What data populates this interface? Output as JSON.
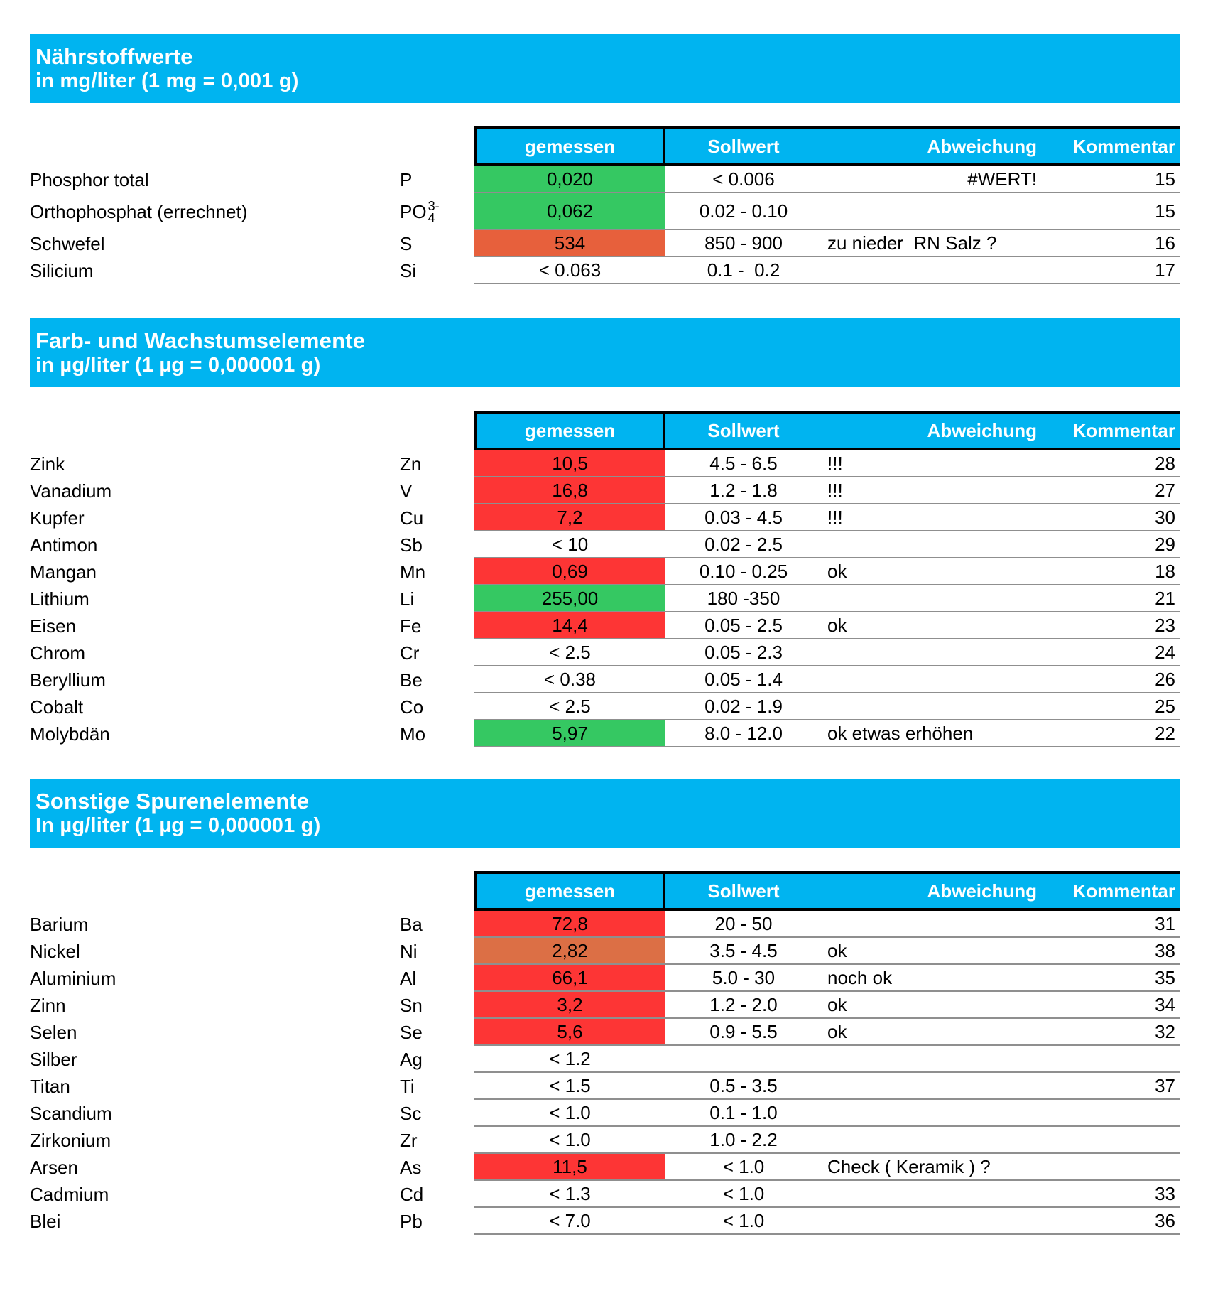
{
  "colors": {
    "header_blue": "#00b4f0",
    "green": "#35c862",
    "red": "#fd3535",
    "orange": "#e7603c",
    "orange_muted": "#dc6f45",
    "row_line": "#8f8f8f",
    "header_border": "#000000",
    "header_text": "#ffffff",
    "body_text": "#000000"
  },
  "columns": {
    "measured": "gemessen",
    "target": "Sollwert",
    "deviation": "Abweichung",
    "comment": "Kommentar"
  },
  "sections": [
    {
      "title": "Nährstoffwerte",
      "subtitle": "in mg/liter (1 mg = 0,001 g)",
      "rows": [
        {
          "name": "Phosphor total",
          "symbol": "P",
          "measured": "0,020",
          "measured_color": "green",
          "target": "< 0.006",
          "deviation": "#WERT!",
          "deviation_align": "right",
          "comment": "15"
        },
        {
          "name": "Orthophosphat (errechnet)",
          "symbol": "PO",
          "symbol_sup": "3-",
          "symbol_sub": "4",
          "measured": "0,062",
          "measured_color": "green",
          "target": "0.02 - 0.10",
          "deviation": "",
          "comment": "15",
          "tall": true
        },
        {
          "name": "Schwefel",
          "symbol": "S",
          "measured": "534",
          "measured_color": "orange",
          "target": "850 - 900",
          "deviation": "zu nieder  RN Salz ?",
          "comment": "16"
        },
        {
          "name": "Silicium",
          "symbol": "Si",
          "measured": "< 0.063",
          "measured_color": "none",
          "target": "0.1 -  0.2",
          "deviation": "",
          "comment": "17"
        }
      ]
    },
    {
      "title": "Farb- und Wachstumselemente",
      "subtitle": "in µg/liter (1 µg = 0,000001 g)",
      "rows": [
        {
          "name": "Zink",
          "symbol": "Zn",
          "measured": "10,5",
          "measured_color": "red",
          "target": "4.5 - 6.5",
          "deviation": "!!!",
          "comment": "28"
        },
        {
          "name": "Vanadium",
          "symbol": "V",
          "measured": "16,8",
          "measured_color": "red",
          "target": "1.2 - 1.8",
          "deviation": "!!!",
          "comment": "27"
        },
        {
          "name": "Kupfer",
          "symbol": "Cu",
          "measured": "7,2",
          "measured_color": "red",
          "target": "0.03 - 4.5",
          "deviation": "!!!",
          "comment": "30"
        },
        {
          "name": "Antimon",
          "symbol": "Sb",
          "measured": "< 10",
          "measured_color": "none",
          "target": "0.02 - 2.5",
          "deviation": "",
          "comment": "29"
        },
        {
          "name": "Mangan",
          "symbol": "Mn",
          "measured": "0,69",
          "measured_color": "red",
          "target": "0.10 - 0.25",
          "deviation": "ok",
          "comment": "18"
        },
        {
          "name": "Lithium",
          "symbol": "Li",
          "measured": "255,00",
          "measured_color": "green",
          "target": "180 -350",
          "deviation": "",
          "comment": "21"
        },
        {
          "name": "Eisen",
          "symbol": "Fe",
          "measured": "14,4",
          "measured_color": "red",
          "target": "0.05 - 2.5",
          "deviation": "ok",
          "comment": "23"
        },
        {
          "name": "Chrom",
          "symbol": "Cr",
          "measured": "< 2.5",
          "measured_color": "none",
          "target": "0.05 - 2.3",
          "deviation": "",
          "comment": "24"
        },
        {
          "name": "Beryllium",
          "symbol": "Be",
          "measured": "< 0.38",
          "measured_color": "none",
          "target": "0.05 - 1.4",
          "deviation": "",
          "comment": "26"
        },
        {
          "name": "Cobalt",
          "symbol": "Co",
          "measured": "< 2.5",
          "measured_color": "none",
          "target": "0.02 - 1.9",
          "deviation": "",
          "comment": "25"
        },
        {
          "name": "Molybdän",
          "symbol": "Mo",
          "measured": "5,97",
          "measured_color": "green",
          "target": "8.0 - 12.0",
          "deviation": "ok etwas erhöhen",
          "comment": "22"
        }
      ]
    },
    {
      "title": "Sonstige Spurenelemente",
      "subtitle": "In µg/liter (1 µg = 0,000001 g)",
      "rows": [
        {
          "name": "Barium",
          "symbol": "Ba",
          "measured": "72,8",
          "measured_color": "red",
          "target": "20 - 50",
          "deviation": "",
          "comment": "31"
        },
        {
          "name": "Nickel",
          "symbol": "Ni",
          "measured": "2,82",
          "measured_color": "orange_muted",
          "target": "3.5 - 4.5",
          "deviation": "ok",
          "comment": "38"
        },
        {
          "name": "Aluminium",
          "symbol": "Al",
          "measured": "66,1",
          "measured_color": "red",
          "target": "5.0 - 30",
          "deviation": "noch ok",
          "comment": "35"
        },
        {
          "name": "Zinn",
          "symbol": "Sn",
          "measured": "3,2",
          "measured_color": "red",
          "target": "1.2 - 2.0",
          "deviation": "ok",
          "comment": "34"
        },
        {
          "name": "Selen",
          "symbol": "Se",
          "measured": "5,6",
          "measured_color": "red",
          "target": "0.9 - 5.5",
          "deviation": "ok",
          "comment": "32"
        },
        {
          "name": "Silber",
          "symbol": "Ag",
          "measured": "< 1.2",
          "measured_color": "none",
          "target": "",
          "deviation": "",
          "comment": ""
        },
        {
          "name": "Titan",
          "symbol": "Ti",
          "measured": "< 1.5",
          "measured_color": "none",
          "target": "0.5 - 3.5",
          "deviation": "",
          "comment": "37"
        },
        {
          "name": "Scandium",
          "symbol": "Sc",
          "measured": "< 1.0",
          "measured_color": "none",
          "target": "0.1 - 1.0",
          "deviation": "",
          "comment": ""
        },
        {
          "name": "Zirkonium",
          "symbol": "Zr",
          "measured": "< 1.0",
          "measured_color": "none",
          "target": "1.0 - 2.2",
          "deviation": "",
          "comment": ""
        },
        {
          "name": "Arsen",
          "symbol": "As",
          "measured": "11,5",
          "measured_color": "red",
          "target": "< 1.0",
          "deviation": "Check ( Keramik ) ?",
          "comment": ""
        },
        {
          "name": "Cadmium",
          "symbol": "Cd",
          "measured": "< 1.3",
          "measured_color": "none",
          "target": "< 1.0",
          "deviation": "",
          "comment": "33"
        },
        {
          "name": "Blei",
          "symbol": "Pb",
          "measured": "< 7.0",
          "measured_color": "none",
          "target": "< 1.0",
          "deviation": "",
          "comment": "36"
        }
      ]
    }
  ]
}
